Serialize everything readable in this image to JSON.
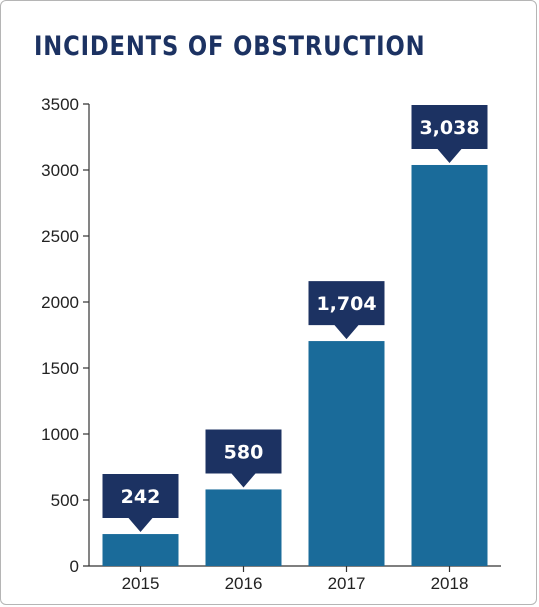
{
  "chart_data": {
    "type": "bar",
    "title": "INCIDENTS OF OBSTRUCTION",
    "categories": [
      "2015",
      "2016",
      "2017",
      "2018"
    ],
    "values": [
      242,
      580,
      1704,
      3038
    ],
    "data_labels": [
      "242",
      "580",
      "1,704",
      "3,038"
    ],
    "ylim": [
      0,
      3500
    ],
    "yticks": [
      0,
      500,
      1000,
      1500,
      2000,
      2500,
      3000,
      3500
    ],
    "xlabel": "",
    "ylabel": "",
    "grid": false,
    "colors": {
      "bar": "#1a6b9a",
      "label_box": "#1c3262",
      "title": "#1c3262"
    }
  }
}
